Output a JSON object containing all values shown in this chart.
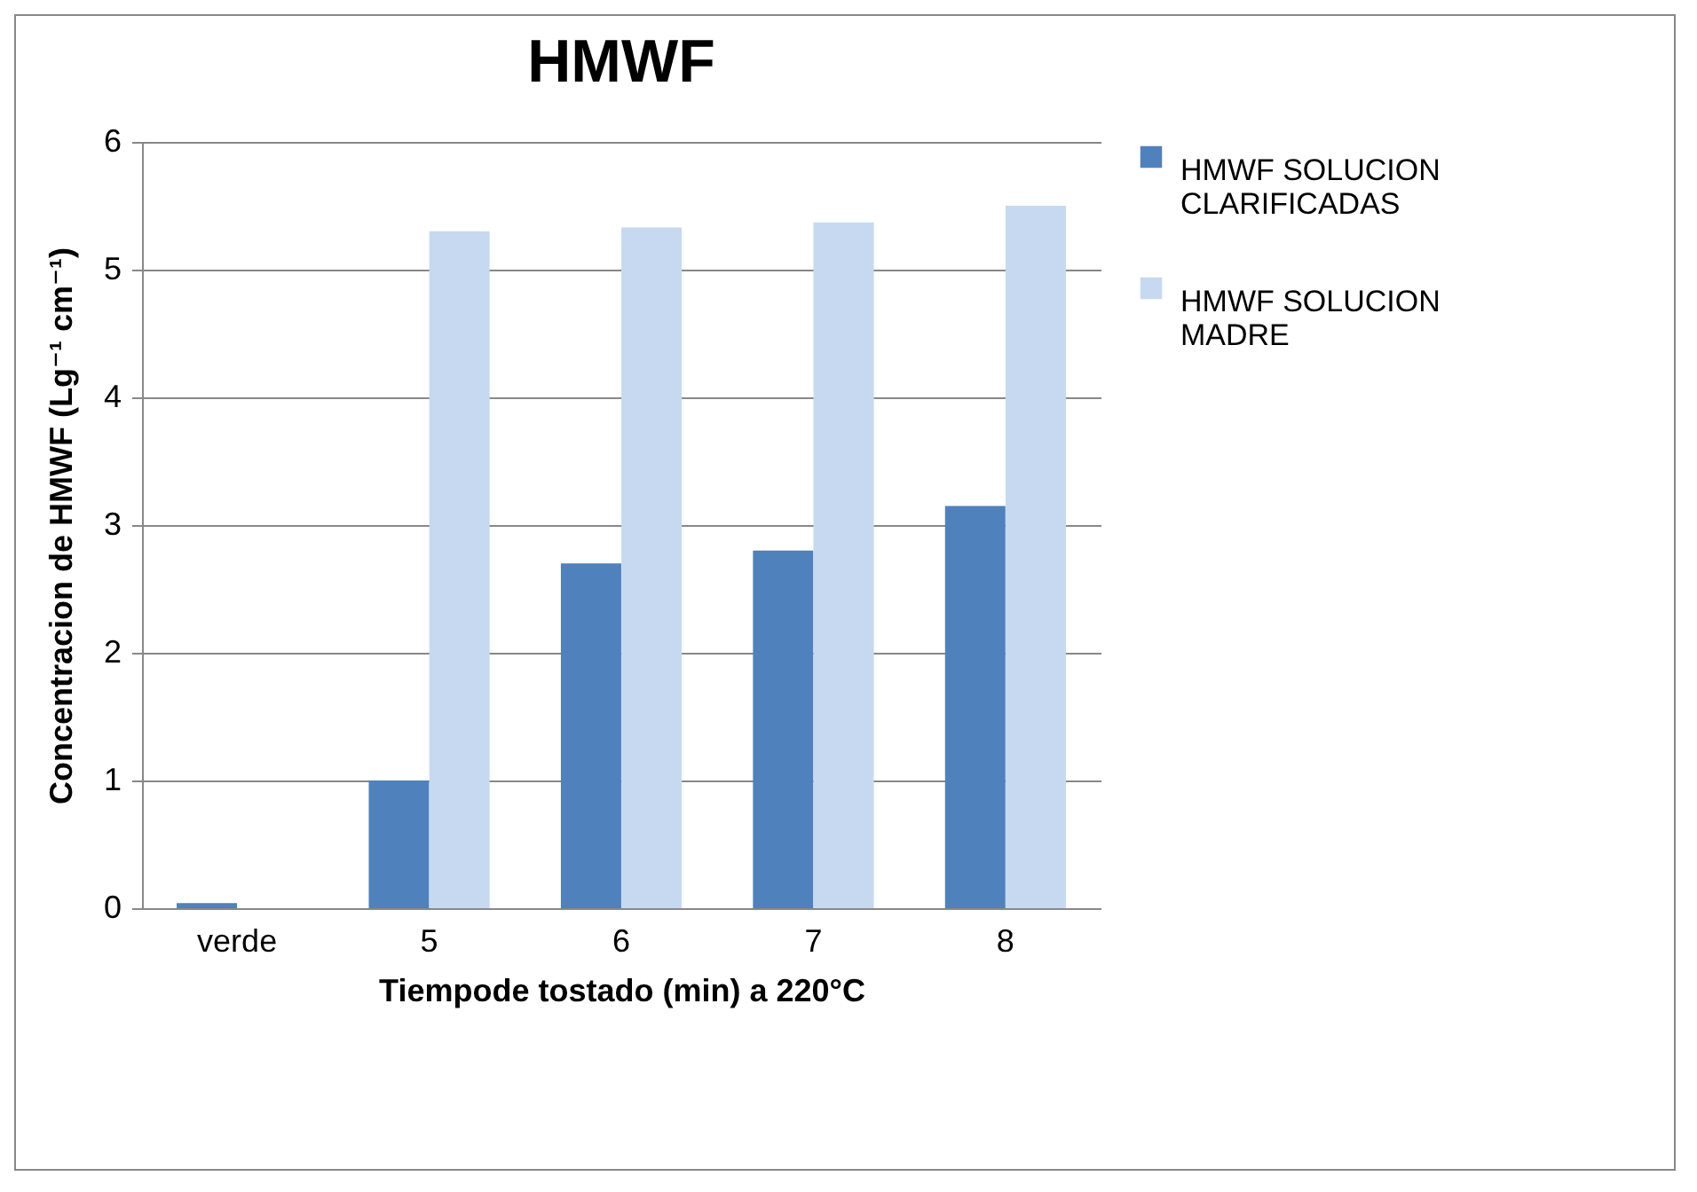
{
  "chart_data": {
    "type": "bar",
    "title": "HMWF",
    "xlabel": "Tiempode tostado (min) a 220°C",
    "ylabel": "Concentracion de HMWF (Lg⁻¹ cm⁻¹)",
    "categories": [
      "verde",
      "5",
      "6",
      "7",
      "8"
    ],
    "series": [
      {
        "name": "HMWF SOLUCION CLARIFICADAS",
        "color": "#4f81bd",
        "values": [
          0.04,
          1.0,
          2.7,
          2.8,
          3.15
        ]
      },
      {
        "name": "HMWF SOLUCION MADRE",
        "color": "#c6d9f1",
        "values": [
          0,
          5.3,
          5.33,
          5.37,
          5.5
        ]
      }
    ],
    "ylim": [
      0,
      6
    ],
    "yticks": [
      0,
      1,
      2,
      3,
      4,
      5,
      6
    ],
    "grid": "y",
    "legend": "right"
  }
}
